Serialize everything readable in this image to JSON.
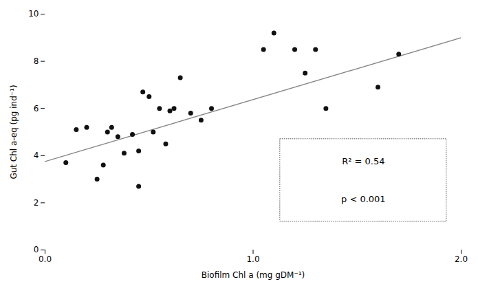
{
  "chart_data": {
    "type": "scatter",
    "x_label": "Biofilm Chl a (mg gDM⁻¹)",
    "y_label": "Gut Chl a-eq (pg ind⁻¹)",
    "series": [
      {
        "type": "scatter",
        "color": "#111111",
        "x": [
          0.1,
          0.15,
          0.2,
          0.25,
          0.28,
          0.3,
          0.32,
          0.35,
          0.38,
          0.42,
          0.45,
          0.45,
          0.47,
          0.5,
          0.52,
          0.55,
          0.58,
          0.6,
          0.62,
          0.65,
          0.7,
          0.75,
          0.8,
          1.05,
          1.1,
          1.2,
          1.25,
          1.3,
          1.35,
          1.6,
          1.7
        ],
        "values": [
          3.7,
          5.1,
          5.2,
          3.0,
          3.6,
          5.0,
          5.2,
          4.8,
          4.1,
          4.9,
          2.7,
          4.2,
          6.7,
          6.5,
          5.0,
          6.0,
          4.5,
          5.9,
          6.0,
          7.3,
          5.8,
          5.5,
          6.0,
          8.5,
          9.2,
          8.5,
          7.5,
          8.5,
          6.0,
          6.9,
          8.3
        ]
      },
      {
        "type": "line",
        "color": "#888888",
        "x": [
          0.0,
          2.0
        ],
        "values": [
          3.75,
          9.0
        ]
      }
    ],
    "annotations": [
      "R² = 0.54",
      "p < 0.001"
    ],
    "xlim": [
      0,
      2
    ],
    "ylim": [
      0,
      10
    ],
    "xticks": [
      0,
      1,
      2
    ],
    "yticks": [
      0,
      2,
      4,
      6,
      8,
      10
    ],
    "grid": false
  }
}
